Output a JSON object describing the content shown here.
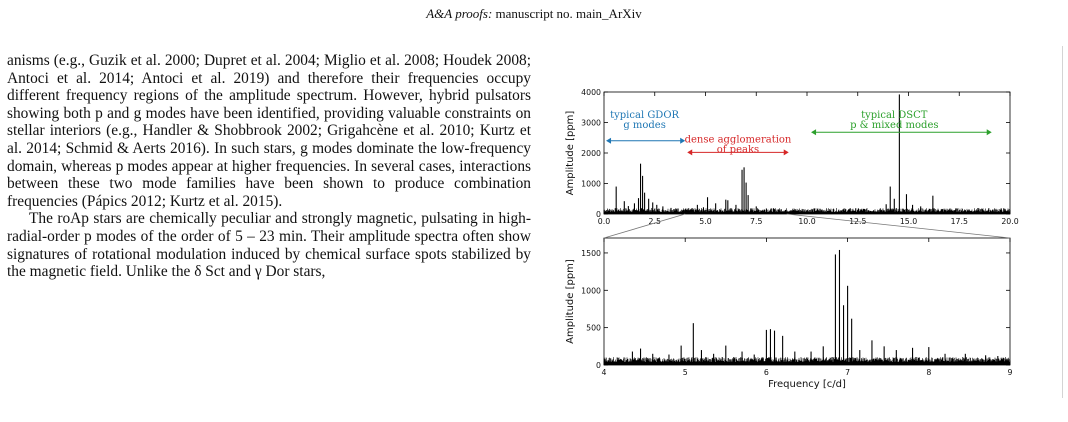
{
  "header": {
    "journal": "A&A proofs:",
    "rest": "manuscript no. main_ArXiv"
  },
  "paragraphs": [
    "anisms (e.g., Guzik et al. 2000; Dupret et al. 2004; Miglio et al. 2008; Houdek 2008; Antoci et al. 2014; Antoci et al. 2019) and therefore their frequencies occupy different frequency regions of the amplitude spectrum. However, hybrid pulsators show­ing both p and g modes have been identified, providing valu­able constraints on stellar interiors (e.g., Handler & Shobbrook 2002; Grigahcène et al. 2010; Kurtz et al. 2014; Schmid & Aerts 2016). In such stars, g modes dominate the low-frequency do­main, whereas p modes appear at higher frequencies. In several cases, interactions between these two mode families have been shown to produce combination frequencies (Pápics 2012; Kurtz et al. 2015).",
    "The roAp stars are chemically peculiar and strongly mag­netic, pulsating in high-radial-order p modes of the order of 5 – 23 min. Their amplitude spectra often show signatures of rotational modulation induced by chemical surface spots stabi­lized by the magnetic field. Unlike the δ Sct and γ Dor stars,"
  ],
  "chart_data": [
    {
      "type": "line",
      "panel": "top",
      "xlim": [
        0.0,
        20.0
      ],
      "ylim": [
        0,
        4000
      ],
      "xticks": [
        "0.0",
        "2.5",
        "5.0",
        "7.5",
        "10.0",
        "12.5",
        "15.0",
        "17.5",
        "20.0"
      ],
      "xtick_values": [
        0,
        2.5,
        5,
        7.5,
        10,
        12.5,
        15,
        17.5,
        20
      ],
      "yticks": [
        "0",
        "1000",
        "2000",
        "3000",
        "4000"
      ],
      "ytick_values": [
        0,
        1000,
        2000,
        3000,
        4000
      ],
      "xlabel": "",
      "ylabel": "Amplitude [ppm]",
      "peaks": [
        [
          0.6,
          900
        ],
        [
          1.0,
          420
        ],
        [
          1.2,
          260
        ],
        [
          1.5,
          350
        ],
        [
          1.7,
          520
        ],
        [
          1.8,
          1650
        ],
        [
          1.9,
          1250
        ],
        [
          2.0,
          700
        ],
        [
          2.2,
          500
        ],
        [
          2.4,
          380
        ],
        [
          2.6,
          300
        ],
        [
          2.9,
          250
        ],
        [
          3.3,
          200
        ],
        [
          3.6,
          180
        ],
        [
          4.0,
          160
        ],
        [
          4.3,
          130
        ],
        [
          4.6,
          300
        ],
        [
          4.9,
          220
        ],
        [
          5.1,
          550
        ],
        [
          5.5,
          350
        ],
        [
          6.0,
          470
        ],
        [
          6.1,
          450
        ],
        [
          6.5,
          300
        ],
        [
          6.8,
          1450
        ],
        [
          6.9,
          1530
        ],
        [
          7.0,
          1030
        ],
        [
          7.1,
          620
        ],
        [
          7.5,
          250
        ],
        [
          8.0,
          180
        ],
        [
          8.6,
          150
        ],
        [
          9.2,
          120
        ],
        [
          10.5,
          120
        ],
        [
          11.7,
          100
        ],
        [
          12.5,
          130
        ],
        [
          13.9,
          320
        ],
        [
          14.1,
          900
        ],
        [
          14.3,
          500
        ],
        [
          14.55,
          3920
        ],
        [
          14.9,
          650
        ],
        [
          15.2,
          300
        ],
        [
          15.6,
          250
        ],
        [
          16.2,
          600
        ],
        [
          17.0,
          120
        ],
        [
          18.5,
          90
        ]
      ],
      "annotations": [
        {
          "lines": [
            "typical GDOR",
            "g modes"
          ],
          "x": 2.0,
          "y": 3150,
          "color": "#1f77b4",
          "arrow": [
            0.1,
            4.0
          ],
          "arrow_y": 2400
        },
        {
          "lines": [
            "dense agglomeration",
            "of peaks"
          ],
          "x": 6.6,
          "y": 2350,
          "color": "#d62728",
          "arrow": [
            4.1,
            9.1
          ],
          "arrow_y": 2020
        },
        {
          "lines": [
            "typical DSCT",
            "p & mixed modes"
          ],
          "x": 14.3,
          "y": 3150,
          "color": "#2ca02c",
          "arrow": [
            10.2,
            19.1
          ],
          "arrow_y": 2680
        }
      ]
    },
    {
      "type": "line",
      "panel": "bottom",
      "xlim": [
        4,
        9
      ],
      "ylim": [
        0,
        1700
      ],
      "xticks": [
        "4",
        "5",
        "6",
        "7",
        "8",
        "9"
      ],
      "xtick_values": [
        4,
        5,
        6,
        7,
        8,
        9
      ],
      "yticks": [
        "0",
        "500",
        "1000",
        "1500"
      ],
      "ytick_values": [
        0,
        500,
        1000,
        1500
      ],
      "xlabel": "Frequency [c/d]",
      "ylabel": "Amplitude [ppm]",
      "peaks": [
        [
          4.35,
          180
        ],
        [
          4.45,
          220
        ],
        [
          4.6,
          150
        ],
        [
          4.8,
          140
        ],
        [
          4.95,
          260
        ],
        [
          5.1,
          560
        ],
        [
          5.2,
          200
        ],
        [
          5.35,
          150
        ],
        [
          5.5,
          260
        ],
        [
          5.7,
          180
        ],
        [
          5.85,
          140
        ],
        [
          6.0,
          470
        ],
        [
          6.05,
          480
        ],
        [
          6.1,
          460
        ],
        [
          6.2,
          390
        ],
        [
          6.35,
          180
        ],
        [
          6.55,
          180
        ],
        [
          6.7,
          250
        ],
        [
          6.85,
          1480
        ],
        [
          6.9,
          1540
        ],
        [
          6.95,
          800
        ],
        [
          7.0,
          1060
        ],
        [
          7.05,
          620
        ],
        [
          7.15,
          200
        ],
        [
          7.3,
          330
        ],
        [
          7.45,
          250
        ],
        [
          7.6,
          200
        ],
        [
          7.8,
          230
        ],
        [
          8.0,
          240
        ],
        [
          8.2,
          150
        ],
        [
          8.45,
          150
        ],
        [
          8.7,
          130
        ],
        [
          8.85,
          120
        ]
      ]
    }
  ]
}
